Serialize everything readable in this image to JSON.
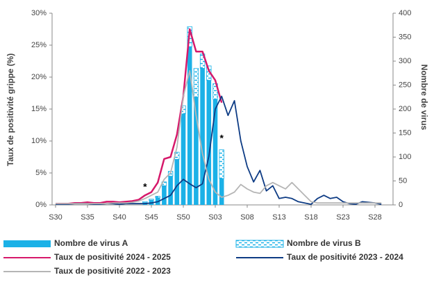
{
  "chart_data": {
    "type": "bar-line",
    "categories": [
      "S30",
      null,
      null,
      null,
      null,
      "S35",
      null,
      null,
      null,
      null,
      "S40",
      null,
      null,
      null,
      null,
      "S45",
      null,
      null,
      null,
      null,
      "S50",
      null,
      null,
      null,
      null,
      "S03",
      null,
      null,
      null,
      null,
      "S08",
      null,
      null,
      null,
      null,
      "S13",
      null,
      null,
      null,
      null,
      "S18",
      null,
      null,
      null,
      null,
      "S23",
      null,
      null,
      null,
      null,
      "S28",
      null
    ],
    "ylabel": "Taux de positivité grippe (%)",
    "y2label": "Nombre de virus",
    "ylim": [
      0,
      30
    ],
    "yticks": [
      {
        "value": 0,
        "label": "0%"
      },
      {
        "value": 5,
        "label": "5%"
      },
      {
        "value": 10,
        "label": "10%"
      },
      {
        "value": 15,
        "label": "15%"
      },
      {
        "value": 20,
        "label": "20%"
      },
      {
        "value": 25,
        "label": "25%"
      },
      {
        "value": 30,
        "label": "30%"
      }
    ],
    "y2lim": [
      0,
      400
    ],
    "y2ticks": [
      0,
      50,
      100,
      150,
      200,
      250,
      300,
      350,
      400
    ],
    "annotations": [
      "*",
      "*"
    ],
    "series": [
      {
        "name": "Nombre de virus A",
        "type": "bar",
        "axis": "y2",
        "color": "#1bb1e7",
        "values": [
          null,
          null,
          null,
          null,
          null,
          null,
          null,
          null,
          null,
          null,
          null,
          null,
          null,
          null,
          5,
          10,
          15,
          40,
          60,
          95,
          190,
          330,
          225,
          285,
          260,
          220,
          55,
          null,
          null,
          null,
          null,
          null,
          null,
          null,
          null,
          null,
          null,
          null,
          null,
          null,
          null,
          null,
          null,
          null,
          null,
          null,
          null,
          null,
          null,
          null,
          null,
          null
        ]
      },
      {
        "name": "Nombre de virus B",
        "type": "bar",
        "axis": "y2",
        "color": "#1bb1e7",
        "pattern": true,
        "values": [
          null,
          null,
          null,
          null,
          null,
          null,
          null,
          null,
          null,
          null,
          null,
          null,
          null,
          null,
          2,
          2,
          3,
          8,
          10,
          15,
          17,
          42,
          60,
          30,
          30,
          33,
          60,
          null,
          null,
          null,
          null,
          null,
          null,
          null,
          null,
          null,
          null,
          null,
          null,
          null,
          null,
          null,
          null,
          null,
          null,
          null,
          null,
          null,
          null,
          null,
          null,
          null
        ]
      },
      {
        "name": "Taux de positivité 2024 - 2025",
        "type": "line",
        "color": "#d6186a",
        "values": [
          0.2,
          0.2,
          0.2,
          0.3,
          0.3,
          0.4,
          0.3,
          0.3,
          0.5,
          0.5,
          0.4,
          0.5,
          0.6,
          0.8,
          1.5,
          2,
          3.5,
          7.2,
          7.5,
          11,
          17,
          27.5,
          24,
          24,
          21,
          19.5,
          16,
          null,
          null,
          null,
          null,
          null,
          null,
          null,
          null,
          null,
          null,
          null,
          null,
          null,
          null,
          null,
          null,
          null,
          null,
          null,
          null,
          null,
          null,
          null,
          null,
          null
        ]
      },
      {
        "name": "Taux de positivité 2023 - 2024",
        "type": "line",
        "color": "#0d3b84",
        "values": [
          0.1,
          0.1,
          0.1,
          0.2,
          0.2,
          0.2,
          0.1,
          0.1,
          0.2,
          0.2,
          0.1,
          0.2,
          0.2,
          0.2,
          0.2,
          0.3,
          0.5,
          1,
          1.5,
          3,
          4,
          3.3,
          2.7,
          3.3,
          7.6,
          15,
          17,
          14,
          16.3,
          10,
          6,
          3.6,
          5.4,
          2.2,
          3,
          1,
          1.2,
          1,
          0.5,
          0.3,
          0.1,
          1,
          1.5,
          1,
          1.2,
          0.5,
          0.2,
          0.1,
          0.5,
          0.4,
          0.3,
          0.1
        ]
      },
      {
        "name": "Taux de positivité 2022 - 2023",
        "type": "line",
        "color": "#b5b5b5",
        "values": [
          0.2,
          0.2,
          0.2,
          0.2,
          0.2,
          0.2,
          0.2,
          0.2,
          0.2,
          0.3,
          0.3,
          0.3,
          0.4,
          0.6,
          1,
          1.5,
          2,
          4,
          5,
          9,
          17,
          21,
          14,
          8,
          4,
          2,
          1.2,
          1.5,
          2,
          3.2,
          2.5,
          2,
          1.8,
          3,
          3.5,
          3,
          2.5,
          3.5,
          2.5,
          1.5,
          0.5,
          0.3,
          0.3,
          0.3,
          0.3,
          0.3,
          0.3,
          0.3,
          0.3,
          0.3,
          0.3,
          0.3
        ]
      }
    ]
  }
}
